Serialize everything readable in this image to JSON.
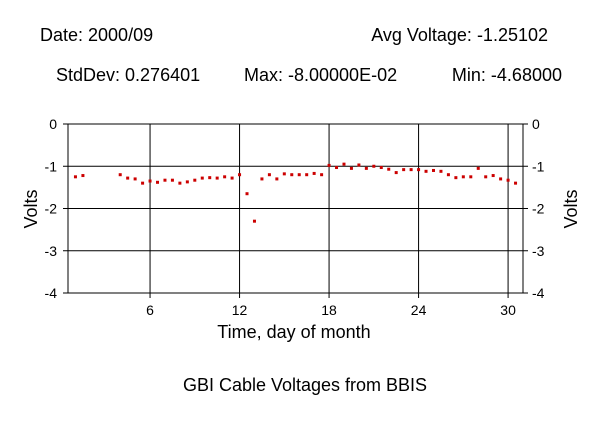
{
  "stats": {
    "date": "Date: 2000/09",
    "avg_voltage": "Avg Voltage: -1.25102",
    "stddev": "StdDev: 0.276401",
    "max": "Max: -8.00000E-02",
    "min": "Min: -4.68000"
  },
  "chart_data": {
    "type": "scatter",
    "title": "GBI Cable Voltages from BBIS",
    "xlabel": "Time, day of month",
    "ylabel": "Volts",
    "xlim": [
      0.5,
      31
    ],
    "ylim": [
      -4,
      0
    ],
    "xticks": [
      6,
      12,
      18,
      24,
      30
    ],
    "yticks": [
      0,
      -1,
      -2,
      -3,
      -4
    ],
    "grid": true,
    "marker_color": "#cc0000",
    "series": [
      {
        "x": [
          1.0,
          1.5,
          4.0,
          4.5,
          5.0,
          5.5,
          6.0,
          6.5,
          7.0,
          7.5,
          8.0,
          8.5,
          9.0,
          9.5,
          10.0,
          10.5,
          11.0,
          11.5,
          12.0,
          12.5,
          13.0,
          13.5,
          14.0,
          14.5,
          15.0,
          15.5,
          16.0,
          16.5,
          17.0,
          17.5,
          18.0,
          18.5,
          19.0,
          19.5,
          20.0,
          20.5,
          21.0,
          21.5,
          22.0,
          22.5,
          23.0,
          23.5,
          24.0,
          24.5,
          25.0,
          25.5,
          26.0,
          26.5,
          27.0,
          27.5,
          28.0,
          28.5,
          29.0,
          29.5,
          30.0,
          30.5
        ],
        "y": [
          -1.25,
          -1.22,
          -1.2,
          -1.28,
          -1.3,
          -1.4,
          -1.35,
          -1.38,
          -1.33,
          -1.33,
          -1.4,
          -1.37,
          -1.33,
          -1.28,
          -1.27,
          -1.28,
          -1.25,
          -1.28,
          -1.2,
          -1.65,
          -2.3,
          -1.3,
          -1.2,
          -1.3,
          -1.18,
          -1.2,
          -1.2,
          -1.2,
          -1.17,
          -1.2,
          -0.98,
          -1.03,
          -0.95,
          -1.05,
          -0.97,
          -1.05,
          -1.0,
          -1.03,
          -1.07,
          -1.15,
          -1.08,
          -1.08,
          -1.08,
          -1.12,
          -1.1,
          -1.12,
          -1.2,
          -1.27,
          -1.25,
          -1.25,
          -1.05,
          -1.25,
          -1.22,
          -1.3,
          -1.33,
          -1.4
        ]
      }
    ]
  }
}
